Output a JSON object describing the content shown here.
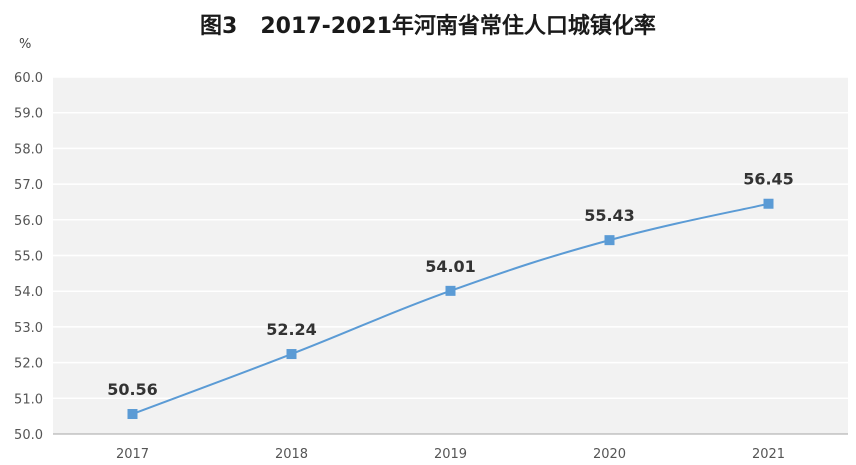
{
  "title": "图3   2017-2021年河南省常住人口城镇化率",
  "colors": {
    "line": "#5b9bd5",
    "marker": "#5b9bd5",
    "plot_bg": "#f2f2f2",
    "gridline": "#ffffff",
    "axis": "#a6a6a6"
  },
  "chart_data": {
    "type": "line",
    "title": "2017-2021年河南省常住人口城镇化率",
    "ylabel": "%",
    "xlabel": "",
    "categories": [
      "2017",
      "2018",
      "2019",
      "2020",
      "2021"
    ],
    "series": [
      {
        "name": "常住人口城镇化率",
        "values": [
          50.56,
          52.24,
          54.01,
          55.43,
          56.45
        ]
      }
    ],
    "data_labels": [
      "50.56",
      "52.24",
      "54.01",
      "55.43",
      "56.45"
    ],
    "ylim": [
      50.0,
      60.0
    ],
    "yticks": [
      "50.0",
      "51.0",
      "52.0",
      "53.0",
      "54.0",
      "55.0",
      "56.0",
      "57.0",
      "58.0",
      "59.0",
      "60.0"
    ],
    "grid": true,
    "legend": "none"
  }
}
